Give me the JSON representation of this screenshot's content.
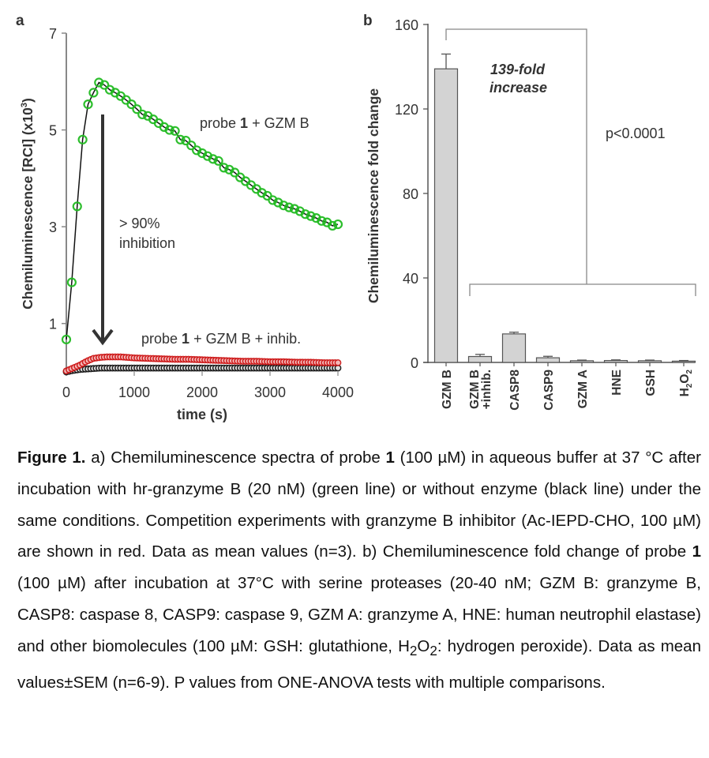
{
  "chart_data": [
    {
      "panel": "a",
      "type": "line",
      "xlabel": "time (s)",
      "ylabel": "Chemiluminescence [RCI] (x10",
      "ylabel_sup": "3",
      "ylabel_end": ")",
      "xlim": [
        0,
        4000
      ],
      "ylim": [
        0,
        7
      ],
      "xticks": [
        "0",
        "1000",
        "2000",
        "3000",
        "4000"
      ],
      "xtick_values": [
        0,
        1000,
        2000,
        3000,
        4000
      ],
      "yticks": [
        "1",
        "3",
        "5",
        "7"
      ],
      "ytick_values": [
        1,
        3,
        5,
        7
      ],
      "grid": false,
      "series": [
        {
          "name": "probe 1 + GZM B",
          "color": "#22bb22",
          "x": [
            0,
            80,
            160,
            240,
            320,
            400,
            480,
            560,
            640,
            720,
            800,
            880,
            960,
            1040,
            1120,
            1200,
            1280,
            1360,
            1440,
            1520,
            1600,
            1680,
            1760,
            1840,
            1920,
            2000,
            2080,
            2160,
            2240,
            2320,
            2400,
            2480,
            2560,
            2640,
            2720,
            2800,
            2880,
            2960,
            3040,
            3120,
            3200,
            3280,
            3360,
            3440,
            3520,
            3600,
            3680,
            3760,
            3840,
            3920,
            4000
          ],
          "y": [
            0.67,
            1.85,
            3.42,
            4.8,
            5.53,
            5.77,
            5.98,
            5.93,
            5.83,
            5.77,
            5.7,
            5.62,
            5.53,
            5.43,
            5.32,
            5.29,
            5.22,
            5.14,
            5.06,
            5.0,
            4.98,
            4.8,
            4.78,
            4.68,
            4.58,
            4.52,
            4.46,
            4.4,
            4.36,
            4.22,
            4.18,
            4.12,
            4.02,
            3.94,
            3.86,
            3.78,
            3.7,
            3.64,
            3.55,
            3.5,
            3.44,
            3.4,
            3.37,
            3.32,
            3.26,
            3.22,
            3.18,
            3.12,
            3.09,
            3.02,
            3.05
          ]
        },
        {
          "name": "probe 1 + GZM B + inhib.",
          "color": "#cc1111",
          "x": [
            0,
            100,
            200,
            300,
            400,
            500,
            600,
            700,
            800,
            900,
            1000,
            1200,
            1400,
            1600,
            1800,
            2000,
            2200,
            2400,
            2600,
            2800,
            3000,
            3200,
            3400,
            3600,
            3800,
            4000
          ],
          "y": [
            0.02,
            0.08,
            0.14,
            0.22,
            0.28,
            0.3,
            0.31,
            0.31,
            0.31,
            0.3,
            0.29,
            0.28,
            0.27,
            0.26,
            0.26,
            0.25,
            0.24,
            0.23,
            0.22,
            0.22,
            0.21,
            0.21,
            0.2,
            0.2,
            0.19,
            0.19
          ]
        },
        {
          "name": "probe 1 (no enzyme)",
          "color": "#111111",
          "x": [
            0,
            100,
            200,
            300,
            400,
            500,
            600,
            700,
            800,
            900,
            1000,
            1200,
            1400,
            1600,
            1800,
            2000,
            2200,
            2400,
            2600,
            2800,
            3000,
            3200,
            3400,
            3600,
            3800,
            4000
          ],
          "y": [
            0.0,
            0.03,
            0.05,
            0.06,
            0.07,
            0.08,
            0.08,
            0.08,
            0.08,
            0.08,
            0.08,
            0.08,
            0.08,
            0.08,
            0.08,
            0.08,
            0.08,
            0.08,
            0.08,
            0.08,
            0.08,
            0.08,
            0.08,
            0.08,
            0.08,
            0.08
          ]
        }
      ],
      "annotations": {
        "panel_label": "a",
        "series1_pre": "probe ",
        "series1_bold": "1",
        "series1_post": " + GZM B",
        "series2_pre": "probe ",
        "series2_bold": "1",
        "series2_post": " + GZM B + inhib.",
        "arrow_line1": "> 90%",
        "arrow_line2": "inhibition"
      }
    },
    {
      "panel": "b",
      "type": "bar",
      "ylabel": "Chemiluminescence fold change",
      "ylim": [
        0,
        160
      ],
      "yticks": [
        "0",
        "40",
        "80",
        "120",
        "160"
      ],
      "ytick_values": [
        0,
        40,
        80,
        120,
        160
      ],
      "grid": false,
      "categories": [
        "GZM B",
        "GZM B +inhib.",
        "CASP8",
        "CASP9",
        "GZM A",
        "HNE",
        "GSH",
        "H2O2"
      ],
      "category_lines": [
        [
          "GZM B"
        ],
        [
          "GZM B",
          "+inhib."
        ],
        [
          "CASP8"
        ],
        [
          "CASP9"
        ],
        [
          "GZM A"
        ],
        [
          "HNE"
        ],
        [
          "GSH"
        ],
        [
          "H",
          "2",
          "O",
          "2"
        ]
      ],
      "values": [
        139,
        2.8,
        13.5,
        2.2,
        0.8,
        0.9,
        0.8,
        0.6
      ],
      "errors": [
        7,
        1.0,
        0.8,
        0.7,
        0.3,
        0.3,
        0.3,
        0.3
      ],
      "bar_color": "#d3d3d3",
      "annotations": {
        "panel_label": "b",
        "fold_line1": "139-fold",
        "fold_line2": "increase",
        "pvalue": "p<0.0001"
      }
    }
  ],
  "caption": {
    "figure_label": "Figure 1.",
    "parts": [
      " a) Chemiluminescence spectra of probe ",
      "1",
      " (100 µM) in aqueous buffer at 37 °C after incubation with hr-granzyme B (20 nM) (green line) or without enzyme (black line) under the same conditions. Competition experiments with granzyme B inhibitor (Ac-IEPD-CHO, 100 µM) are shown in red. Data as mean values (n=3). b) Chemiluminescence fold change of probe ",
      "1",
      " (100 µM) after incubation at 37°C with serine proteases (20-40 nM; GZM B: granzyme B, CASP8: caspase 8, CASP9: caspase 9, GZM A: granzyme A, HNE: human neutrophil elastase) and other biomolecules (100 µM: GSH: glutathione, H",
      "2",
      "O",
      "2",
      ": hydrogen peroxide). Data as mean values±SEM (n=6-9). P values from ONE-ANOVA tests with multiple comparisons."
    ]
  }
}
